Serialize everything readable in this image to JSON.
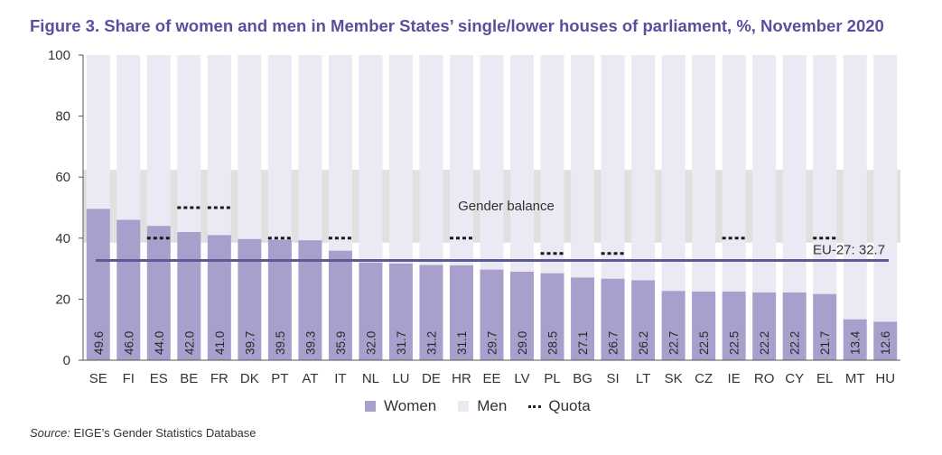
{
  "title": "Figure 3. Share of women and men in Member States’ single/lower houses of parliament, %, November 2020",
  "source_label": "Source:",
  "source_text": "EIGE’s Gender Statistics Database",
  "colors": {
    "women": "#a99fcd",
    "men": "#ebe9f3",
    "balance_band": "#d9d9d9",
    "eu_line": "#5b5c96",
    "title": "#5b4e9e"
  },
  "chart_data": {
    "type": "bar",
    "stacked": true,
    "categories": [
      "SE",
      "FI",
      "ES",
      "BE",
      "FR",
      "DK",
      "PT",
      "AT",
      "IT",
      "NL",
      "LU",
      "DE",
      "HR",
      "EE",
      "LV",
      "PL",
      "BG",
      "SI",
      "LT",
      "SK",
      "CZ",
      "IE",
      "RO",
      "CY",
      "EL",
      "MT",
      "HU"
    ],
    "series": [
      {
        "name": "Women",
        "values": [
          49.6,
          46.0,
          44.0,
          42.0,
          41.0,
          39.7,
          39.5,
          39.3,
          35.9,
          32.0,
          31.7,
          31.2,
          31.1,
          29.7,
          29.0,
          28.5,
          27.1,
          26.7,
          26.2,
          22.7,
          22.5,
          22.5,
          22.2,
          22.2,
          21.7,
          13.4,
          12.6
        ]
      },
      {
        "name": "Men",
        "values": [
          50.4,
          54.0,
          56.0,
          58.0,
          59.0,
          60.3,
          60.5,
          60.7,
          64.1,
          68.0,
          68.3,
          68.8,
          68.9,
          70.3,
          71.0,
          71.5,
          72.9,
          73.3,
          73.8,
          77.3,
          77.5,
          77.5,
          77.8,
          77.8,
          78.3,
          86.6,
          87.4
        ]
      }
    ],
    "value_labels": [
      "49.6",
      "46.0",
      "44.0",
      "42.0",
      "41.0",
      "39.7",
      "39.5",
      "39.3",
      "35.9",
      "32.0",
      "31.7",
      "31.2",
      "31.1",
      "29.7",
      "29.0",
      "28.5",
      "27.1",
      "26.7",
      "26.2",
      "22.7",
      "22.5",
      "22.5",
      "22.2",
      "22.2",
      "21.7",
      "13.4",
      "12.6"
    ],
    "quota": {
      "name": "Quota",
      "points": [
        {
          "category": "ES",
          "value": 40
        },
        {
          "category": "BE",
          "value": 50
        },
        {
          "category": "FR",
          "value": 50
        },
        {
          "category": "PT",
          "value": 40
        },
        {
          "category": "IT",
          "value": 40
        },
        {
          "category": "HR",
          "value": 40
        },
        {
          "category": "PL",
          "value": 35
        },
        {
          "category": "SI",
          "value": 35
        },
        {
          "category": "IE",
          "value": 40
        },
        {
          "category": "EL",
          "value": 40
        }
      ]
    },
    "gender_balance": {
      "label": "Gender balance",
      "from": 40,
      "to": 60
    },
    "reference_line": {
      "label": "EU-27: 32.7",
      "value": 32.7
    },
    "ylim": [
      0,
      100
    ],
    "yticks": [
      "0",
      "20",
      "40",
      "60",
      "80",
      "100"
    ],
    "legend": {
      "placement": "bottom",
      "women": "Women",
      "men": "Men",
      "quota": "Quota"
    },
    "grid": false
  }
}
